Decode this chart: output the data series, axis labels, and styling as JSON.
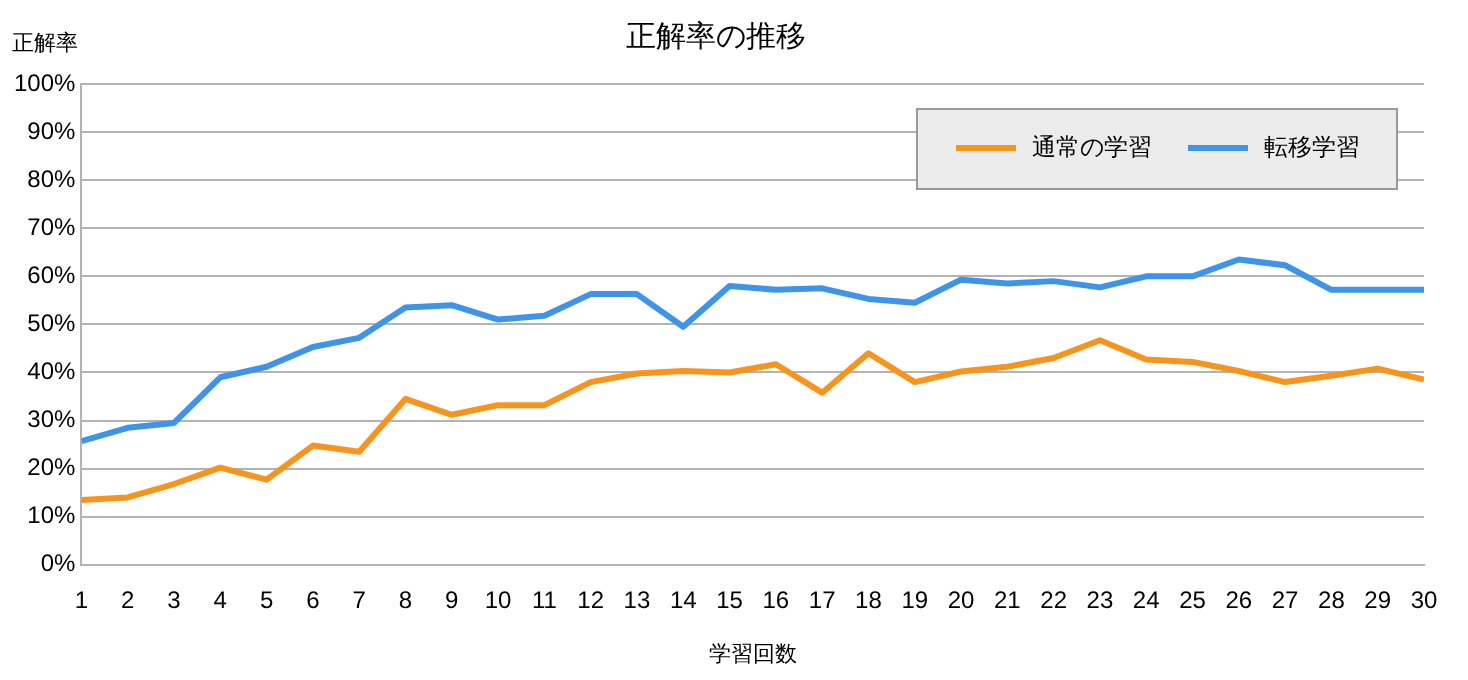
{
  "chart_data": {
    "type": "line",
    "title": "正解率の推移",
    "xlabel": "学習回数",
    "ylabel": "正解率",
    "x": [
      1,
      2,
      3,
      4,
      5,
      6,
      7,
      8,
      9,
      10,
      11,
      12,
      13,
      14,
      15,
      16,
      17,
      18,
      19,
      20,
      21,
      22,
      23,
      24,
      25,
      26,
      27,
      28,
      29,
      30
    ],
    "xlim": [
      1,
      30
    ],
    "xticks": [
      1,
      2,
      3,
      4,
      5,
      6,
      7,
      8,
      9,
      10,
      11,
      12,
      13,
      14,
      15,
      16,
      17,
      18,
      19,
      20,
      21,
      22,
      23,
      24,
      25,
      26,
      27,
      28,
      29,
      30
    ],
    "ylim": [
      0,
      100
    ],
    "yticks": [
      {
        "value": 0,
        "label": "0%"
      },
      {
        "value": 10,
        "label": "10%"
      },
      {
        "value": 20,
        "label": "20%"
      },
      {
        "value": 30,
        "label": "30%"
      },
      {
        "value": 40,
        "label": "40%"
      },
      {
        "value": 50,
        "label": "50%"
      },
      {
        "value": 60,
        "label": "60%"
      },
      {
        "value": 70,
        "label": "70%"
      },
      {
        "value": 80,
        "label": "80%"
      },
      {
        "value": 90,
        "label": "90%"
      },
      {
        "value": 100,
        "label": "100%"
      }
    ],
    "grid": "y",
    "legend": "top right",
    "marker": "none",
    "line_style": "solid",
    "series": [
      {
        "name": "通常の学習",
        "color": "#f7941d",
        "values": [
          13.5,
          14,
          16.8,
          20.2,
          17.7,
          24.8,
          23.5,
          34.5,
          31.2,
          33.2,
          33.2,
          38,
          39.8,
          40.3,
          40,
          41.7,
          35.8,
          44,
          38,
          40.2,
          41.2,
          43,
          46.7,
          42.7,
          42.2,
          40.3,
          38,
          39.3,
          40.8,
          38.5
        ]
      },
      {
        "name": "転移学習",
        "color": "#3d94e8",
        "values": [
          25.7,
          28.5,
          29.5,
          39,
          41.2,
          45.3,
          47.2,
          53.5,
          54,
          51,
          51.8,
          56.3,
          56.3,
          49.5,
          58,
          57.2,
          57.5,
          55.3,
          54.5,
          59.3,
          58.5,
          59,
          57.7,
          60,
          60,
          63.5,
          62.3,
          57.2,
          57.2,
          57.2
        ]
      }
    ]
  }
}
